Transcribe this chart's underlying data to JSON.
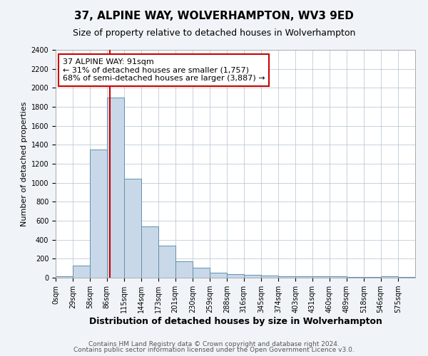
{
  "title1": "37, ALPINE WAY, WOLVERHAMPTON, WV3 9ED",
  "title2": "Size of property relative to detached houses in Wolverhampton",
  "xlabel": "Distribution of detached houses by size in Wolverhampton",
  "ylabel": "Number of detached properties",
  "bin_labels": [
    "0sqm",
    "29sqm",
    "58sqm",
    "86sqm",
    "115sqm",
    "144sqm",
    "173sqm",
    "201sqm",
    "230sqm",
    "259sqm",
    "288sqm",
    "316sqm",
    "345sqm",
    "374sqm",
    "403sqm",
    "431sqm",
    "460sqm",
    "489sqm",
    "518sqm",
    "546sqm",
    "575sqm"
  ],
  "bin_edges": [
    0,
    29,
    58,
    86,
    115,
    144,
    173,
    201,
    230,
    259,
    288,
    316,
    345,
    374,
    403,
    431,
    460,
    489,
    518,
    546,
    575,
    604
  ],
  "bar_values": [
    15,
    130,
    1350,
    1900,
    1040,
    540,
    340,
    170,
    105,
    55,
    35,
    30,
    20,
    18,
    15,
    15,
    12,
    8,
    5,
    18,
    5
  ],
  "bar_color": "#c8d8e8",
  "bar_edge_color": "#6090b0",
  "property_size": 91,
  "red_line_color": "#cc0000",
  "annotation_line1": "37 ALPINE WAY: 91sqm",
  "annotation_line2": "← 31% of detached houses are smaller (1,757)",
  "annotation_line3": "68% of semi-detached houses are larger (3,887) →",
  "annotation_box_color": "#ffffff",
  "annotation_box_edge_color": "#cc0000",
  "ylim": [
    0,
    2400
  ],
  "yticks": [
    0,
    200,
    400,
    600,
    800,
    1000,
    1200,
    1400,
    1600,
    1800,
    2000,
    2200,
    2400
  ],
  "footer1": "Contains HM Land Registry data © Crown copyright and database right 2024.",
  "footer2": "Contains public sector information licensed under the Open Government Licence v3.0.",
  "bg_color": "#f0f4f8",
  "plot_bg_color": "#ffffff",
  "title1_fontsize": 11,
  "title2_fontsize": 9,
  "xlabel_fontsize": 9,
  "ylabel_fontsize": 8,
  "tick_fontsize": 7,
  "annotation_fontsize": 8,
  "footer_fontsize": 6.5
}
